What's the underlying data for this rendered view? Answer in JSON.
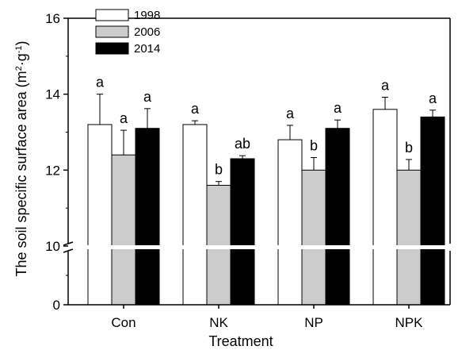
{
  "chart_data": {
    "type": "bar",
    "title": "",
    "xlabel": "Treatment",
    "ylabel": "The soil specific surface area (m²·g⁻¹)",
    "ylabel_parts": {
      "main": "The soil specific surface area (m",
      "sup1": "2",
      "mid": "·g",
      "sup2": "-1",
      "end": ")"
    },
    "y_axis_broken": true,
    "y_break": [
      0,
      10
    ],
    "ylim": [
      0,
      16
    ],
    "yticks": [
      "0",
      "10",
      "12",
      "14",
      "16"
    ],
    "categories": [
      "Con",
      "NK",
      "NP",
      "NPK"
    ],
    "legend_position": "top-left",
    "series": [
      {
        "name": "1998",
        "color": "#ffffff",
        "values": [
          13.2,
          13.2,
          12.8,
          13.6
        ],
        "errors": [
          0.8,
          0.1,
          0.38,
          0.32
        ],
        "labels": [
          "a",
          "a",
          "a",
          "a"
        ]
      },
      {
        "name": "2006",
        "color": "#cccccc",
        "values": [
          12.4,
          11.6,
          12.0,
          12.0
        ],
        "errors": [
          0.65,
          0.1,
          0.33,
          0.28
        ],
        "labels": [
          "a",
          "b",
          "b",
          "b"
        ]
      },
      {
        "name": "2014",
        "color": "#000000",
        "values": [
          13.1,
          12.3,
          13.1,
          13.4
        ],
        "errors": [
          0.52,
          0.08,
          0.22,
          0.18
        ],
        "labels": [
          "a",
          "ab",
          "a",
          "a"
        ]
      }
    ]
  }
}
